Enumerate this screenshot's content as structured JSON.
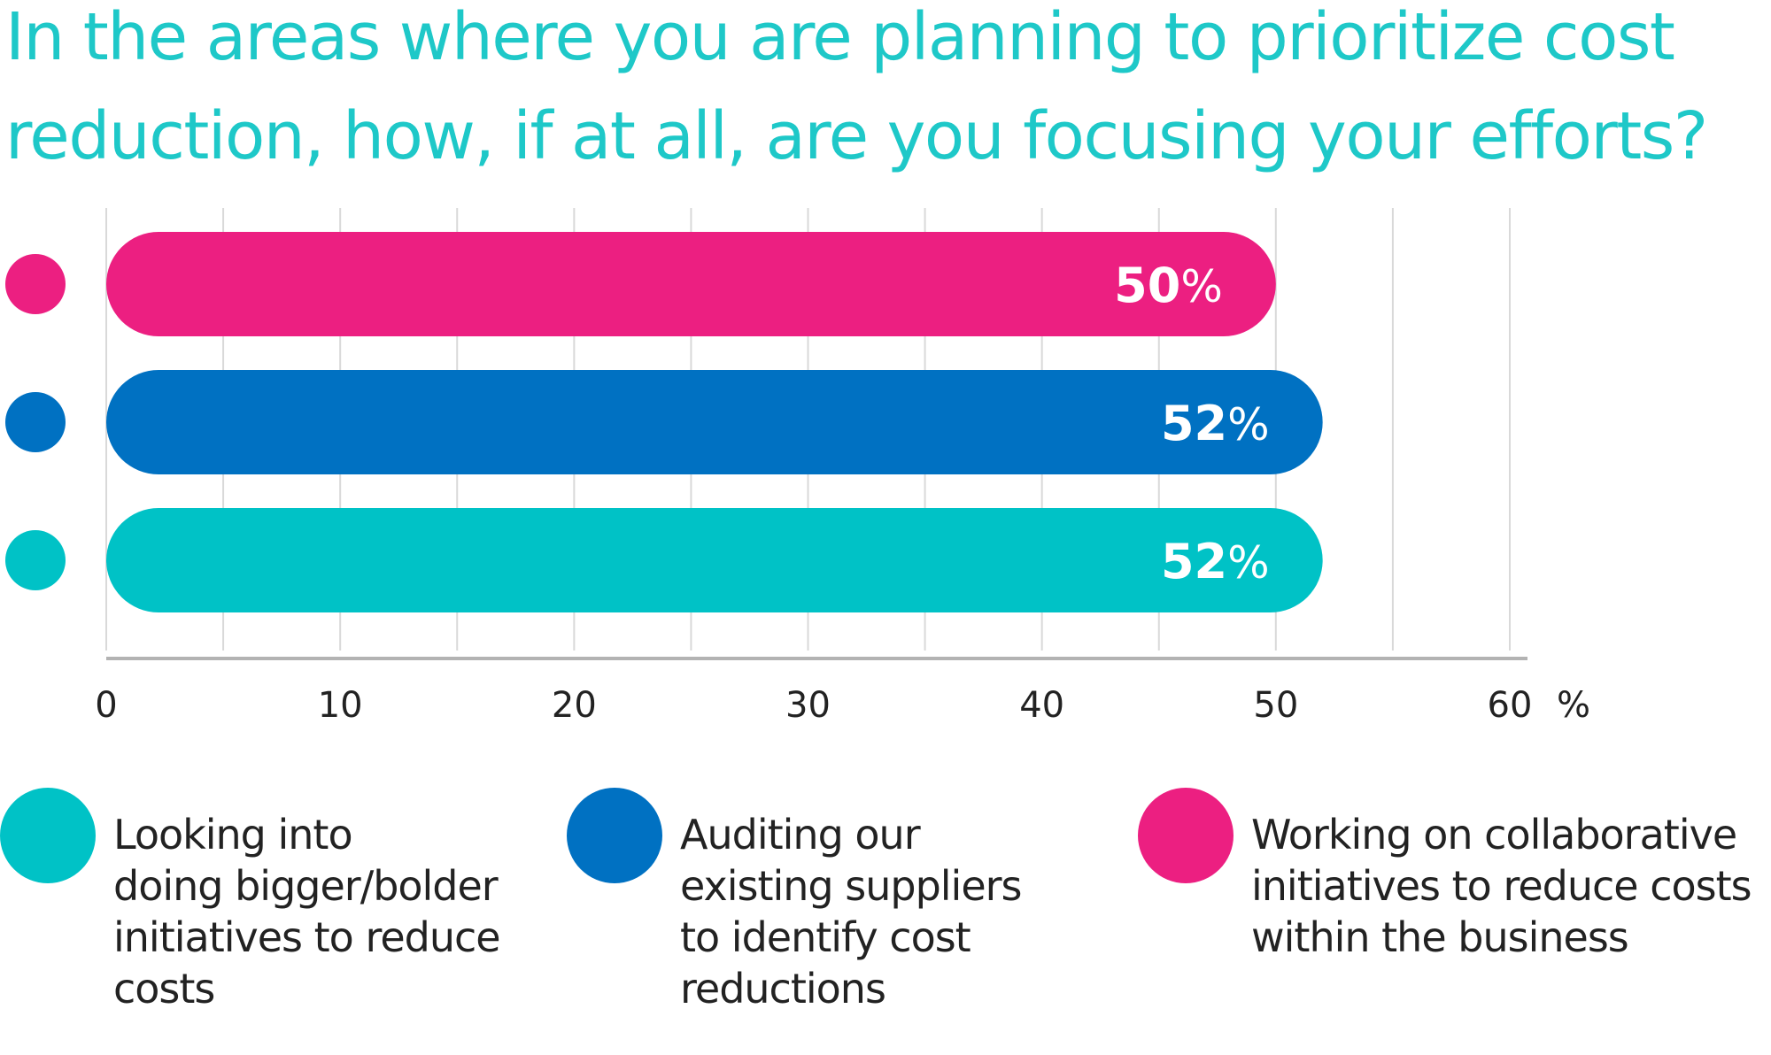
{
  "colors": {
    "title": "#1ec8c8",
    "pink": "#ec1f81",
    "blue": "#0071c2",
    "teal": "#00c2c6",
    "grid": "#d9d9d9",
    "axis": "#b3b3b3",
    "tick_text": "#222222"
  },
  "chart_data": {
    "type": "bar",
    "orientation": "horizontal",
    "title": "In the areas where you are planning to prioritize cost reduction, how, if at all, are you focusing your efforts?",
    "title_lines": [
      "In the areas where you are planning to prioritize cost",
      "reduction, how, if at all, are you focusing your efforts?"
    ],
    "x_unit": "%",
    "xlim": [
      0,
      60
    ],
    "x_ticks": [
      0,
      10,
      20,
      30,
      40,
      50,
      60
    ],
    "x_tick_labels": [
      "0",
      "10",
      "20",
      "30",
      "40",
      "50",
      "60"
    ],
    "grid": true,
    "legend_position": "bottom",
    "series": [
      {
        "name": "Working on collaborative initiatives to reduce costs within the business",
        "value": 50,
        "label": "50%",
        "color": "#ec1f81"
      },
      {
        "name": "Auditing our existing suppliers to identify cost reductions",
        "value": 52,
        "label": "52%",
        "color": "#0071c2"
      },
      {
        "name": "Looking into doing bigger/bolder initiatives to reduce costs",
        "value": 52,
        "label": "52%",
        "color": "#00c2c6"
      }
    ],
    "legend": [
      {
        "color": "#00c2c6",
        "lines": [
          "Looking into",
          "doing bigger/bolder",
          "initiatives to reduce",
          "costs"
        ]
      },
      {
        "color": "#0071c2",
        "lines": [
          "Auditing our",
          "existing suppliers",
          "to identify cost",
          "reductions"
        ]
      },
      {
        "color": "#ec1f81",
        "lines": [
          "Working on collaborative",
          "initiatives to reduce costs",
          "within the business"
        ]
      }
    ]
  }
}
